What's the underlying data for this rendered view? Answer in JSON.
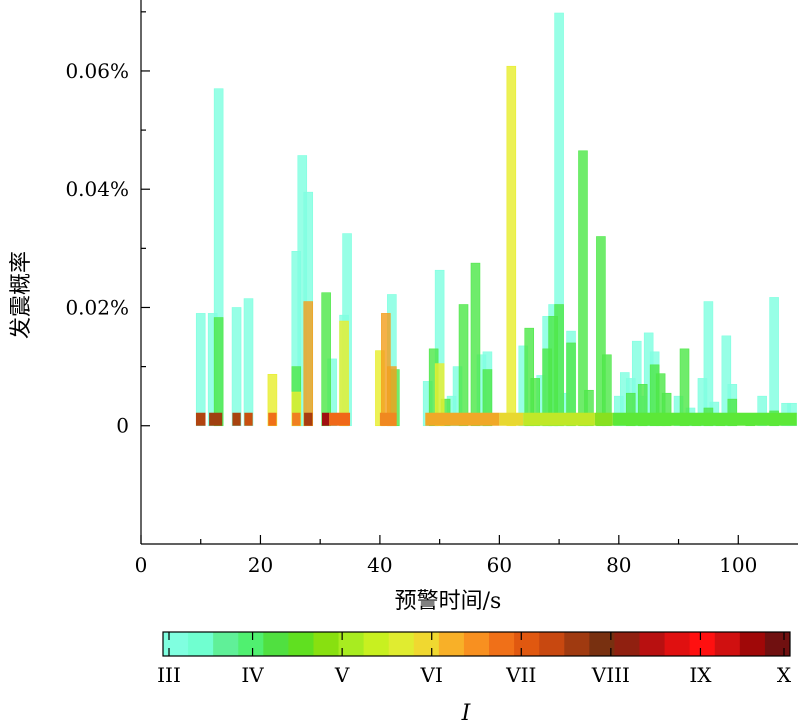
{
  "chart_data": {
    "type": "bar",
    "xlabel": "预警时间/s",
    "ylabel": "发震概率",
    "xlim": [
      0,
      110
    ],
    "ylim": [
      -0.0002,
      0.00072
    ],
    "x_ticks": [
      0,
      20,
      40,
      60,
      80,
      100
    ],
    "x_tick_labels": [
      "0",
      "20",
      "40",
      "60",
      "80",
      "100"
    ],
    "y_ticks": [
      0,
      0.0002,
      0.0004,
      0.0006
    ],
    "y_tick_labels": [
      "0",
      "0.02%",
      "0.04%",
      "0.06%"
    ],
    "grid": false,
    "bar_width": 1.5,
    "colorbar": {
      "title": "I",
      "labels": [
        "III",
        "IV",
        "V",
        "VI",
        "VII",
        "VIII",
        "IX",
        "X"
      ],
      "colors": [
        "#80ffe0",
        "#70ffd0",
        "#60f098",
        "#50f070",
        "#50e040",
        "#60e020",
        "#88e010",
        "#a8ec20",
        "#c8f020",
        "#e0ec30",
        "#f0d830",
        "#f8b028",
        "#f89020",
        "#f07018",
        "#e05810",
        "#c84810",
        "#a03a10",
        "#783010",
        "#902010",
        "#b81010",
        "#e01010",
        "#ff1010",
        "#d01010",
        "#a00808",
        "#701010"
      ]
    },
    "series": [
      {
        "color": "#80ffe0",
        "points": [
          [
            10,
            0.00019
          ],
          [
            12,
            0.00019
          ],
          [
            13,
            0.00057
          ],
          [
            16,
            0.0002
          ],
          [
            18,
            0.000215
          ],
          [
            26,
            0.000295
          ],
          [
            27,
            0.000457
          ],
          [
            28,
            0.000395
          ],
          [
            32,
            0.000113
          ],
          [
            34,
            0.000187
          ],
          [
            34.5,
            0.000325
          ],
          [
            42,
            0.000222
          ],
          [
            48,
            7.5e-05
          ],
          [
            50,
            0.000263
          ],
          [
            52,
            5e-05
          ],
          [
            53,
            0.0001
          ],
          [
            57,
            0.00012
          ],
          [
            58,
            0.000125
          ],
          [
            64,
            0.000135
          ],
          [
            67,
            8.5e-05
          ],
          [
            68,
            0.000185
          ],
          [
            69,
            0.000205
          ],
          [
            70,
            0.000698
          ],
          [
            71,
            5.5e-05
          ],
          [
            72,
            0.00016
          ],
          [
            80,
            5e-05
          ],
          [
            81,
            9e-05
          ],
          [
            82,
            8e-05
          ],
          [
            83,
            0.000143
          ],
          [
            84,
            5e-05
          ],
          [
            85,
            0.000157
          ],
          [
            86,
            0.000125
          ],
          [
            90,
            5e-05
          ],
          [
            92,
            3e-05
          ],
          [
            94,
            8e-05
          ],
          [
            95,
            0.00021
          ],
          [
            96,
            4e-05
          ],
          [
            98,
            0.000152
          ],
          [
            99,
            7e-05
          ],
          [
            104,
            5e-05
          ],
          [
            106,
            0.000217
          ],
          [
            108,
            3.8e-05
          ],
          [
            109,
            3.8e-05
          ]
        ]
      },
      {
        "color": "#4fe84a",
        "points": [
          [
            13,
            0.000183
          ],
          [
            26,
            0.0001
          ],
          [
            31,
            0.000225
          ],
          [
            42.5,
            9.5e-05
          ],
          [
            49,
            0.00013
          ],
          [
            51,
            4.5e-05
          ],
          [
            54,
            0.000205
          ],
          [
            56,
            0.000275
          ],
          [
            58,
            9.5e-05
          ],
          [
            65,
            0.000165
          ],
          [
            66,
            8e-05
          ],
          [
            68,
            0.00013
          ],
          [
            69,
            0.000185
          ],
          [
            70,
            0.000205
          ],
          [
            72,
            0.00014
          ],
          [
            74,
            0.000465
          ],
          [
            75,
            6e-05
          ],
          [
            77,
            0.00032
          ],
          [
            78,
            0.00012
          ],
          [
            82,
            5.5e-05
          ],
          [
            84,
            7e-05
          ],
          [
            86,
            0.000103
          ],
          [
            87,
            8.8e-05
          ],
          [
            88,
            5.5e-05
          ],
          [
            91,
            0.00013
          ],
          [
            93,
            2e-05
          ],
          [
            95,
            3e-05
          ],
          [
            97,
            1.8e-05
          ],
          [
            99,
            4.5e-05
          ],
          [
            102,
            2e-05
          ],
          [
            106,
            2.5e-05
          ]
        ]
      },
      {
        "color": "#e8ee30",
        "points": [
          [
            22,
            8.7e-05
          ],
          [
            26,
            5.7e-05
          ],
          [
            34,
            0.000177
          ],
          [
            40,
            0.000127
          ],
          [
            50,
            0.000105
          ],
          [
            62,
            0.000608
          ]
        ]
      },
      {
        "color": "#f3a020",
        "points": [
          [
            28,
            0.00021
          ],
          [
            41,
            0.00019
          ],
          [
            42,
            0.0001
          ]
        ]
      }
    ],
    "base_strip": {
      "height": 2.2e-05,
      "segments": [
        {
          "x0": 9.2,
          "x1": 10.8,
          "color": "#b04410"
        },
        {
          "x0": 11.4,
          "x1": 13.6,
          "color": "#a04010"
        },
        {
          "x0": 15.3,
          "x1": 16.7,
          "color": "#a84410"
        },
        {
          "x0": 17.3,
          "x1": 18.7,
          "color": "#c85010"
        },
        {
          "x0": 21.3,
          "x1": 22.7,
          "color": "#f07018"
        },
        {
          "x0": 25.3,
          "x1": 26.7,
          "color": "#f08020"
        },
        {
          "x0": 27.3,
          "x1": 28.7,
          "color": "#a83c10"
        },
        {
          "x0": 30.3,
          "x1": 31.5,
          "color": "#a01010"
        },
        {
          "x0": 31.5,
          "x1": 35.0,
          "color": "#f06818"
        },
        {
          "x0": 40.0,
          "x1": 42.8,
          "color": "#f08820"
        },
        {
          "x0": 47.6,
          "x1": 60.0,
          "color": "#f0a828"
        },
        {
          "x0": 60.0,
          "x1": 64.0,
          "color": "#e8d830"
        },
        {
          "x0": 64.0,
          "x1": 76.0,
          "color": "#c0e828"
        },
        {
          "x0": 76.0,
          "x1": 79.0,
          "color": "#88e020"
        },
        {
          "x0": 79.0,
          "x1": 109.8,
          "color": "#5ce838"
        }
      ]
    }
  }
}
